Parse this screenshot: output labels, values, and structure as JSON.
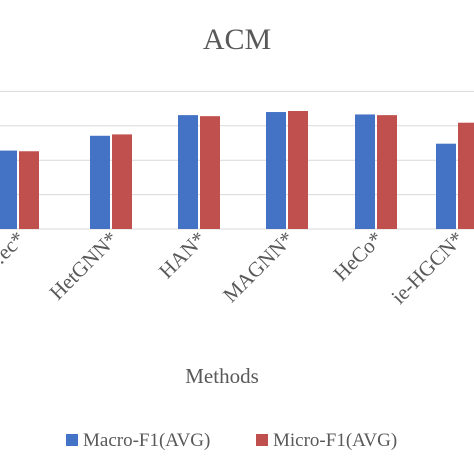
{
  "chart_data": {
    "type": "bar",
    "title": "ACM",
    "xlabel": "Methods",
    "ylabel": "",
    "ylim": [
      0,
      1
    ],
    "grid": true,
    "legend_position": "bottom",
    "categories": [
      "…ec*",
      "HetGNN*",
      "HAN*",
      "MAGNN*",
      "HeCo*",
      "ie-HGCN*"
    ],
    "series": [
      {
        "name": "Macro-F1(AVG)",
        "color": "#4472C4",
        "values": [
          0.628,
          0.671,
          0.731,
          0.74,
          0.733,
          0.648
        ]
      },
      {
        "name": "Micro-F1(AVG)",
        "color": "#C0504D",
        "values": [
          0.626,
          0.675,
          0.728,
          0.743,
          0.731,
          0.709
        ]
      }
    ]
  }
}
